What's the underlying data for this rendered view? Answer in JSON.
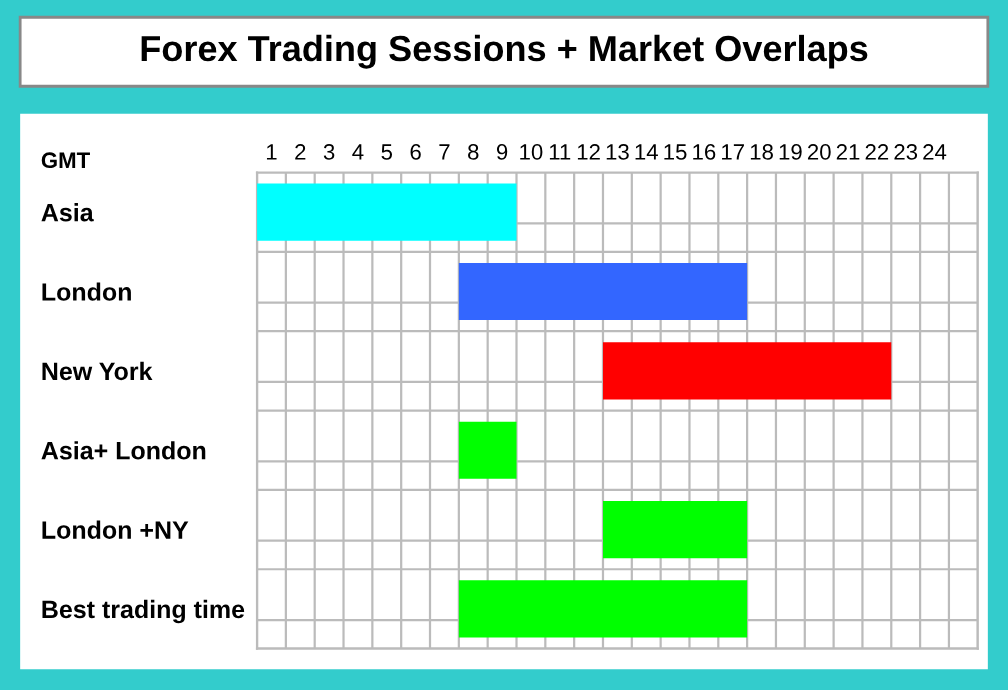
{
  "chart_data": {
    "type": "bar",
    "orientation": "horizontal",
    "title": "Forex Trading Sessions + Market Overlaps",
    "xlabel": "GMT",
    "categories": [
      "Asia",
      "London",
      "New York",
      "Asia+ London",
      "London +NY",
      "Best trading time"
    ],
    "base": [
      0,
      7,
      12,
      7,
      12,
      7
    ],
    "values": [
      9,
      10,
      10,
      2,
      5,
      10
    ],
    "colors": [
      "#00ffff",
      "#3366ff",
      "#ff0000",
      "#00ff00",
      "#00ff00",
      "#00ff00"
    ],
    "xlim": [
      0,
      25
    ],
    "xticks": [
      {
        "value": 0.5,
        "label": "1"
      },
      {
        "value": 1.5,
        "label": "2"
      },
      {
        "value": 2.5,
        "label": "3"
      },
      {
        "value": 3.5,
        "label": "4"
      },
      {
        "value": 4.5,
        "label": "5"
      },
      {
        "value": 5.5,
        "label": "6"
      },
      {
        "value": 6.5,
        "label": "7"
      },
      {
        "value": 7.5,
        "label": "8"
      },
      {
        "value": 8.5,
        "label": "9"
      },
      {
        "value": 9.5,
        "label": "10"
      },
      {
        "value": 10.5,
        "label": "11"
      },
      {
        "value": 11.5,
        "label": "12"
      },
      {
        "value": 12.5,
        "label": "13"
      },
      {
        "value": 13.5,
        "label": "14"
      },
      {
        "value": 14.5,
        "label": "15"
      },
      {
        "value": 15.5,
        "label": "16"
      },
      {
        "value": 16.5,
        "label": "17"
      },
      {
        "value": 17.5,
        "label": "18"
      },
      {
        "value": 18.5,
        "label": "19"
      },
      {
        "value": 19.5,
        "label": "20"
      },
      {
        "value": 20.5,
        "label": "21"
      },
      {
        "value": 21.5,
        "label": "22"
      },
      {
        "value": 22.5,
        "label": "23"
      },
      {
        "value": 23.5,
        "label": "24"
      }
    ],
    "grid": true
  }
}
